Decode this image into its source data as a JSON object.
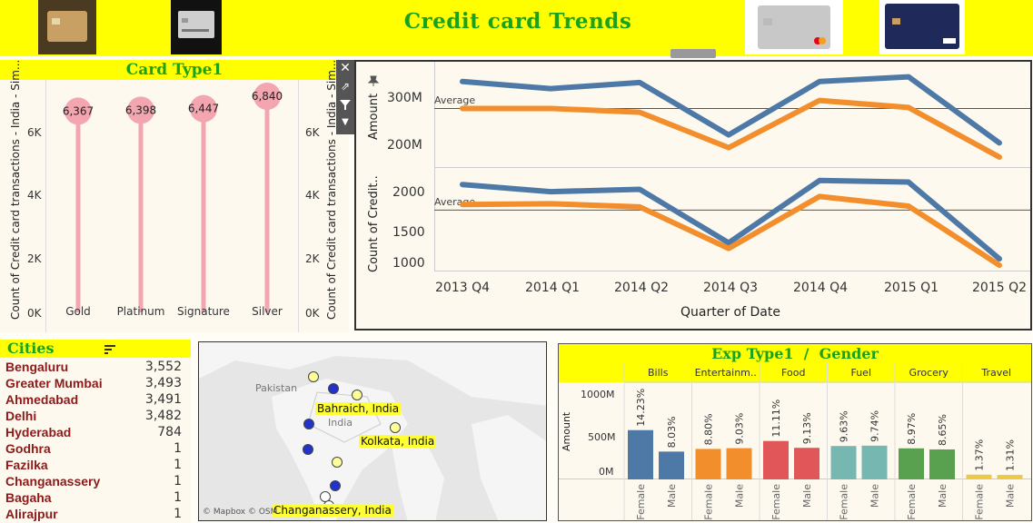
{
  "header": {
    "title": "Credit card Trends",
    "thumbnails": [
      "gold-card-image",
      "black-card-image",
      "platinum-card-image",
      "visa-signature-card-image"
    ]
  },
  "card_type": {
    "title": "Card Type1",
    "y_axis_title": "Count of Credit card transactions - India - Sim...",
    "y_ticks": [
      "6K",
      "4K",
      "2K",
      "0K"
    ],
    "categories": [
      "Gold",
      "Platinum",
      "Signature",
      "Silver"
    ],
    "value_labels": [
      "6,367",
      "6,398",
      "6,447",
      "6,840"
    ]
  },
  "trend": {
    "top_axis_title": "Amount",
    "bottom_axis_title": "Count of Credit..",
    "top_ticks": [
      "300M",
      "200M"
    ],
    "bottom_ticks": [
      "2000",
      "1500",
      "1000"
    ],
    "average_label": "Average",
    "x_title": "Quarter of Date",
    "x_ticks": [
      "2013 Q4",
      "2014 Q1",
      "2014 Q2",
      "2014 Q3",
      "2014 Q4",
      "2015 Q1",
      "2015 Q2"
    ],
    "colors": {
      "blue": "#4e79a7",
      "orange": "#f28e2b"
    }
  },
  "cities": {
    "title": "Cities",
    "rows": [
      {
        "city": "Bengaluru",
        "count": "3,552"
      },
      {
        "city": "Greater Mumbai",
        "count": "3,493"
      },
      {
        "city": "Ahmedabad",
        "count": "3,491"
      },
      {
        "city": "Delhi",
        "count": "3,482"
      },
      {
        "city": "Hyderabad",
        "count": "784"
      },
      {
        "city": "Godhra",
        "count": "1"
      },
      {
        "city": "Fazilka",
        "count": "1"
      },
      {
        "city": "Changanassery",
        "count": "1"
      },
      {
        "city": "Bagaha",
        "count": "1"
      },
      {
        "city": "Alirajpur",
        "count": "1"
      }
    ]
  },
  "map": {
    "labels": [
      "Bahraich, India",
      "Kolkata, India",
      "Changanassery, India"
    ],
    "places": [
      "Pakistan",
      "India"
    ],
    "attribution": "© Mapbox © OSM"
  },
  "exp": {
    "title": "Exp Type1  /  Gender",
    "y_axis_title": "Amount",
    "y_ticks": [
      "1000M",
      "500M",
      "0M"
    ],
    "categories": [
      "Bills",
      "Entertainm..",
      "Food",
      "Fuel",
      "Grocery",
      "Travel"
    ],
    "genders": [
      "Female",
      "Male"
    ],
    "colors": [
      "#4e79a7",
      "#f28e2b",
      "#e15759",
      "#76b7b2",
      "#59a14f",
      "#edc948"
    ],
    "pct_labels": [
      [
        "14.23%",
        "8.03%"
      ],
      [
        "8.80%",
        "9.03%"
      ],
      [
        "11.11%",
        "9.13%"
      ],
      [
        "9.63%",
        "9.74%"
      ],
      [
        "8.97%",
        "8.65%"
      ],
      [
        "1.37%",
        "1.31%"
      ]
    ]
  },
  "chart_data": [
    {
      "type": "bar",
      "title": "Card Type1",
      "ylabel": "Count of Credit card transactions - India - Sim...",
      "categories": [
        "Gold",
        "Platinum",
        "Signature",
        "Silver"
      ],
      "values": [
        6367,
        6398,
        6447,
        6840
      ],
      "ylim": [
        0,
        7000
      ]
    },
    {
      "type": "line",
      "ylabel": "Amount",
      "x": [
        "2013 Q4",
        "2014 Q1",
        "2014 Q2",
        "2014 Q3",
        "2014 Q4",
        "2015 Q1",
        "2015 Q2"
      ],
      "series": [
        {
          "values": [
            335000000,
            320000000,
            333000000,
            222000000,
            335000000,
            345000000,
            205000000
          ]
        },
        {
          "values": [
            278000000,
            278000000,
            270000000,
            195000000,
            295000000,
            280000000,
            175000000
          ]
        }
      ],
      "ylim": [
        150000000,
        360000000
      ],
      "average": 278000000
    },
    {
      "type": "line",
      "ylabel": "Count of Credit..",
      "x": [
        "2013 Q4",
        "2014 Q1",
        "2014 Q2",
        "2014 Q3",
        "2014 Q4",
        "2015 Q1",
        "2015 Q2"
      ],
      "series": [
        {
          "values": [
            2100,
            2010,
            2040,
            1370,
            2150,
            2130,
            1170
          ]
        },
        {
          "values": [
            1850,
            1860,
            1820,
            1300,
            1950,
            1830,
            1090
          ]
        }
      ],
      "ylim": [
        900,
        2300
      ],
      "average": 1780
    },
    {
      "type": "bar",
      "title": "Exp Type1  /  Gender",
      "ylabel": "Amount",
      "categories": [
        "Bills",
        "Entertainm..",
        "Food",
        "Fuel",
        "Grocery",
        "Travel"
      ],
      "series": [
        {
          "name": "Female",
          "values": [
            590000000,
            365000000,
            460000000,
            400000000,
            372000000,
            57000000
          ]
        },
        {
          "name": "Male",
          "values": [
            333000000,
            374000000,
            378000000,
            404000000,
            359000000,
            54000000
          ]
        }
      ],
      "ylim": [
        0,
        1150000000
      ]
    }
  ]
}
